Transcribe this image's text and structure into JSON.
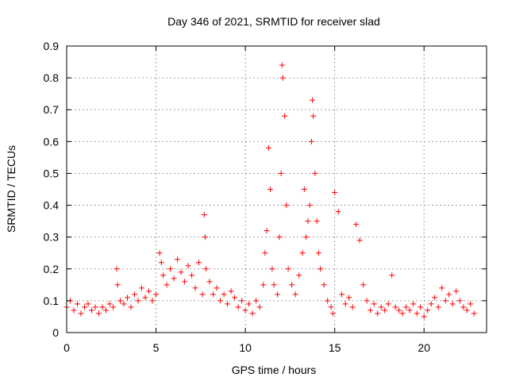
{
  "chart_data": {
    "type": "scatter",
    "title": "Day 346 of 2021, SRMTID for receiver slad",
    "xlabel": "GPS time / hours",
    "ylabel": "SRMTID / TECUs",
    "xlim": [
      0,
      23.5
    ],
    "ylim": [
      0,
      0.9
    ],
    "xticks": [
      0,
      5,
      10,
      15,
      20
    ],
    "xtick_labels": [
      "0",
      "5",
      "10",
      "15",
      "20"
    ],
    "yticks": [
      0,
      0.1,
      0.2,
      0.3,
      0.4,
      0.5,
      0.6,
      0.7,
      0.8,
      0.9
    ],
    "ytick_labels": [
      "0",
      "0.1",
      "0.2",
      "0.3",
      "0.4",
      "0.5",
      "0.6",
      "0.7",
      "0.8",
      "0.9"
    ],
    "grid": true,
    "marker": "+",
    "series_color": "#ff0000",
    "series": [
      {
        "name": "SRMTID",
        "x": [
          0.0,
          0.2,
          0.4,
          0.6,
          0.8,
          1.0,
          1.2,
          1.4,
          1.6,
          1.8,
          2.0,
          2.2,
          2.4,
          2.6,
          2.8,
          2.85,
          3.0,
          3.2,
          3.4,
          3.6,
          3.8,
          4.0,
          4.2,
          4.4,
          4.6,
          4.8,
          5.0,
          5.2,
          5.3,
          5.4,
          5.6,
          5.8,
          6.0,
          6.2,
          6.4,
          6.6,
          6.8,
          7.0,
          7.2,
          7.4,
          7.6,
          7.7,
          7.75,
          7.8,
          8.0,
          8.2,
          8.4,
          8.6,
          8.8,
          9.0,
          9.2,
          9.4,
          9.6,
          9.8,
          10.0,
          10.2,
          10.4,
          10.6,
          10.8,
          11.0,
          11.1,
          11.2,
          11.3,
          11.4,
          11.5,
          11.6,
          11.8,
          11.9,
          12.0,
          12.05,
          12.1,
          12.2,
          12.3,
          12.4,
          12.6,
          12.8,
          13.0,
          13.2,
          13.3,
          13.4,
          13.5,
          13.6,
          13.7,
          13.75,
          13.8,
          13.9,
          14.0,
          14.1,
          14.2,
          14.4,
          14.6,
          14.8,
          14.9,
          15.0,
          15.2,
          15.4,
          15.6,
          15.8,
          16.0,
          16.2,
          16.4,
          16.6,
          16.8,
          17.0,
          17.2,
          17.4,
          17.6,
          17.8,
          18.0,
          18.2,
          18.4,
          18.6,
          18.8,
          19.0,
          19.2,
          19.4,
          19.6,
          19.8,
          20.0,
          20.2,
          20.4,
          20.6,
          20.8,
          21.0,
          21.2,
          21.4,
          21.6,
          21.8,
          22.0,
          22.2,
          22.4,
          22.6,
          22.8
        ],
        "y": [
          0.08,
          0.1,
          0.07,
          0.09,
          0.06,
          0.08,
          0.09,
          0.07,
          0.08,
          0.06,
          0.08,
          0.07,
          0.09,
          0.08,
          0.2,
          0.15,
          0.1,
          0.09,
          0.11,
          0.08,
          0.12,
          0.1,
          0.14,
          0.11,
          0.13,
          0.1,
          0.12,
          0.25,
          0.22,
          0.18,
          0.15,
          0.2,
          0.17,
          0.23,
          0.19,
          0.16,
          0.21,
          0.18,
          0.14,
          0.22,
          0.12,
          0.37,
          0.3,
          0.2,
          0.16,
          0.12,
          0.14,
          0.1,
          0.12,
          0.09,
          0.13,
          0.11,
          0.08,
          0.1,
          0.07,
          0.09,
          0.06,
          0.1,
          0.08,
          0.15,
          0.25,
          0.32,
          0.58,
          0.45,
          0.2,
          0.15,
          0.12,
          0.3,
          0.5,
          0.84,
          0.8,
          0.68,
          0.4,
          0.2,
          0.15,
          0.12,
          0.18,
          0.25,
          0.45,
          0.3,
          0.35,
          0.4,
          0.6,
          0.73,
          0.68,
          0.5,
          0.35,
          0.25,
          0.2,
          0.15,
          0.1,
          0.08,
          0.06,
          0.44,
          0.38,
          0.12,
          0.09,
          0.11,
          0.08,
          0.34,
          0.29,
          0.15,
          0.1,
          0.07,
          0.09,
          0.06,
          0.08,
          0.07,
          0.09,
          0.18,
          0.08,
          0.07,
          0.06,
          0.08,
          0.07,
          0.09,
          0.06,
          0.08,
          0.05,
          0.07,
          0.09,
          0.11,
          0.08,
          0.14,
          0.1,
          0.12,
          0.09,
          0.13,
          0.1,
          0.08,
          0.07,
          0.09,
          0.06
        ]
      }
    ]
  }
}
